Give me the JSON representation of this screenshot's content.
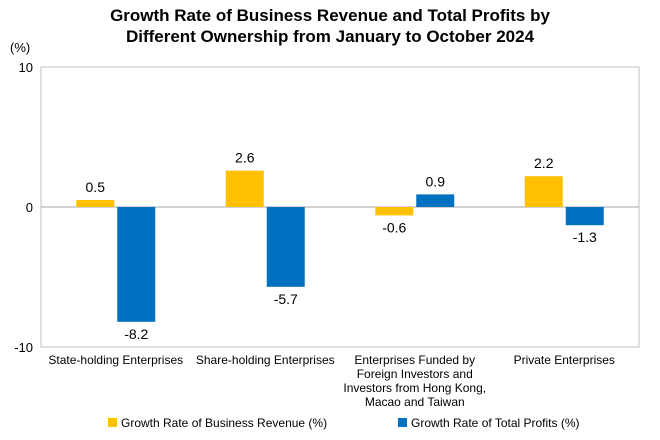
{
  "chart_data": {
    "type": "bar",
    "title_lines": [
      "Growth Rate of Business Revenue and Total Profits by",
      "Different Ownership from January to October 2024"
    ],
    "y_unit": "(%)",
    "ylim": [
      -10,
      10
    ],
    "yticks": [
      "10",
      "0",
      "-10"
    ],
    "grid": false,
    "legend_position": "bottom",
    "categories": [
      [
        "State-holding Enterprises"
      ],
      [
        "Share-holding Enterprises"
      ],
      [
        "Enterprises Funded by",
        "Foreign Investors and",
        "Investors from Hong Kong,",
        "Macao and Taiwan"
      ],
      [
        "Private Enterprises"
      ]
    ],
    "series": [
      {
        "name": "Growth Rate of Business Revenue (%)",
        "color": "#FFC000",
        "values": [
          0.5,
          2.6,
          -0.6,
          2.2
        ],
        "labels": [
          "0.5",
          "2.6",
          "-0.6",
          "2.2"
        ]
      },
      {
        "name": "Growth Rate of Total Profits (%)",
        "color": "#0070C0",
        "values": [
          -8.2,
          -5.7,
          0.9,
          -1.3
        ],
        "labels": [
          "-8.2",
          "-5.7",
          "0.9",
          "-1.3"
        ]
      }
    ]
  }
}
